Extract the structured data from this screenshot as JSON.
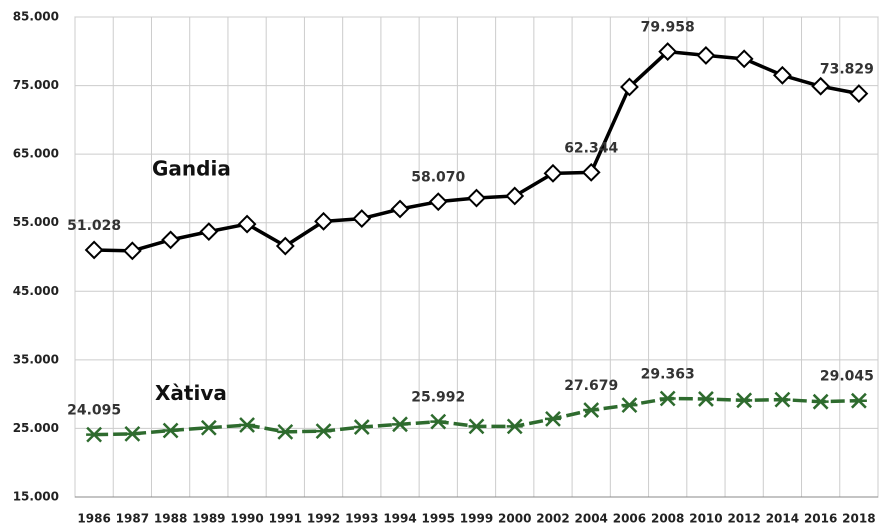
{
  "chart_data": {
    "type": "line",
    "categories": [
      "1986",
      "1987",
      "1988",
      "1989",
      "1990",
      "1991",
      "1992",
      "1993",
      "1994",
      "1995",
      "1999",
      "2000",
      "2002",
      "2004",
      "2006",
      "2008",
      "2010",
      "2012",
      "2014",
      "2016",
      "2018"
    ],
    "series": [
      {
        "name": "Gandia",
        "color": "#000000",
        "values": [
          51028,
          50900,
          52500,
          53700,
          54800,
          51600,
          55200,
          55600,
          57000,
          58070,
          58600,
          58900,
          62200,
          62344,
          74800,
          79958,
          79400,
          78900,
          76500,
          74900,
          73829
        ],
        "value_labels": [
          "51.028",
          null,
          null,
          null,
          null,
          null,
          null,
          null,
          null,
          "58.070",
          null,
          null,
          null,
          "62.344",
          null,
          "79.958",
          null,
          null,
          null,
          null,
          "73.829"
        ]
      },
      {
        "name": "Xàtiva",
        "color": "#2e6b2e",
        "values": [
          24095,
          24200,
          24700,
          25100,
          25500,
          24500,
          24600,
          25200,
          25600,
          25992,
          25300,
          25300,
          26400,
          27679,
          28400,
          29363,
          29300,
          29100,
          29200,
          28900,
          29045
        ],
        "value_labels": [
          "24.095",
          null,
          null,
          null,
          null,
          null,
          null,
          null,
          null,
          "25.992",
          null,
          null,
          null,
          "27.679",
          null,
          "29.363",
          null,
          null,
          null,
          null,
          "29.045"
        ]
      }
    ],
    "ylim": [
      15000,
      85000
    ],
    "yticks": [
      {
        "value": 15000,
        "label": "15.000"
      },
      {
        "value": 25000,
        "label": "25.000"
      },
      {
        "value": 35000,
        "label": "35.000"
      },
      {
        "value": 45000,
        "label": "45.000"
      },
      {
        "value": 55000,
        "label": "55.000"
      },
      {
        "value": 65000,
        "label": "65.000"
      },
      {
        "value": 75000,
        "label": "75.000"
      },
      {
        "value": 85000,
        "label": "85.000"
      }
    ],
    "grid": true
  }
}
